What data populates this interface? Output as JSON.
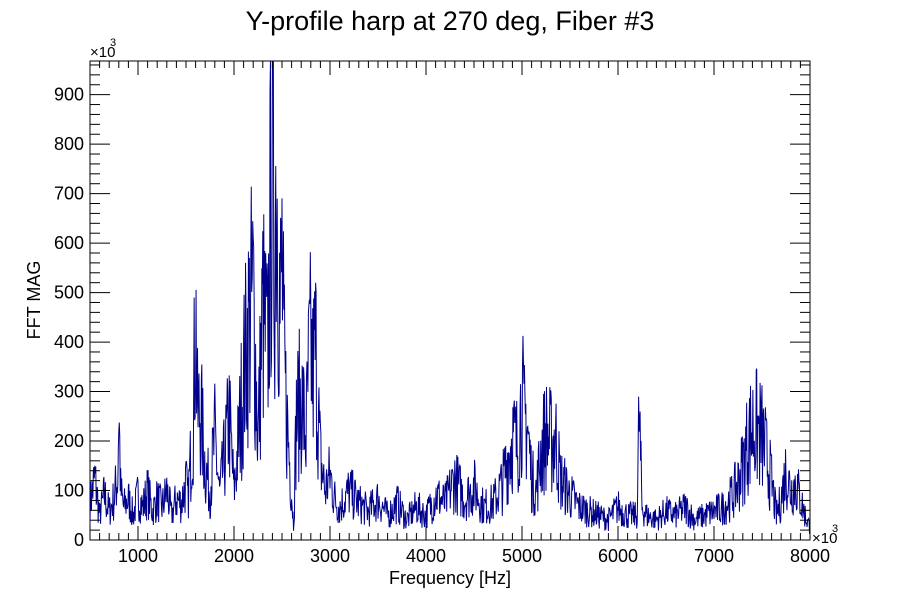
{
  "chart_data": {
    "type": "line",
    "title": "Y-profile harp at 270 deg, Fiber #3",
    "xlabel": "Frequency [Hz]",
    "ylabel": "FFT MAG",
    "x_multiplier_label": "×10",
    "x_multiplier_exponent": "3",
    "y_multiplier_label": "×10",
    "y_multiplier_exponent": "3",
    "xlim": [
      500,
      8000
    ],
    "ylim": [
      0,
      968
    ],
    "x_major_ticks": [
      1000,
      2000,
      3000,
      4000,
      5000,
      6000,
      7000,
      8000
    ],
    "y_major_ticks": [
      0,
      100,
      200,
      300,
      400,
      500,
      600,
      700,
      800,
      900
    ],
    "line_color": "#00008b",
    "grid": false,
    "series": [
      {
        "x": [
          500,
          550,
          600,
          650,
          700,
          750,
          790,
          800,
          820,
          850,
          900,
          950,
          1000,
          1050,
          1100,
          1150,
          1200,
          1250,
          1300,
          1350,
          1400,
          1450,
          1500,
          1520,
          1550,
          1580,
          1600,
          1620,
          1650,
          1700,
          1750,
          1800,
          1850,
          1900,
          1950,
          2000,
          2050,
          2100,
          2150,
          2200,
          2250,
          2300,
          2350,
          2380,
          2400,
          2420,
          2440,
          2460,
          2480,
          2500,
          2520,
          2550,
          2600,
          2620,
          2650,
          2700,
          2750,
          2780,
          2800,
          2820,
          2850,
          2880,
          2900,
          2950,
          3000,
          3050,
          3100,
          3200,
          3300,
          3400,
          3500,
          3600,
          3700,
          3800,
          3900,
          4000,
          4100,
          4200,
          4300,
          4400,
          4500,
          4600,
          4700,
          4800,
          4850,
          4900,
          4950,
          4980,
          5000,
          5020,
          5050,
          5100,
          5150,
          5200,
          5250,
          5300,
          5350,
          5400,
          5450,
          5500,
          5600,
          5700,
          5800,
          5900,
          6000,
          6100,
          6200,
          6220,
          6250,
          6300,
          6400,
          6500,
          6600,
          6700,
          6800,
          6900,
          7000,
          7100,
          7200,
          7250,
          7300,
          7350,
          7400,
          7450,
          7500,
          7550,
          7600,
          7650,
          7700,
          7750,
          7800,
          7850,
          7900,
          7950,
          8000
        ],
        "y": [
          90,
          150,
          60,
          110,
          70,
          100,
          160,
          330,
          120,
          80,
          100,
          60,
          110,
          80,
          120,
          70,
          100,
          80,
          120,
          60,
          100,
          90,
          140,
          100,
          200,
          330,
          580,
          300,
          320,
          180,
          120,
          250,
          110,
          200,
          300,
          120,
          250,
          400,
          520,
          600,
          250,
          560,
          450,
          780,
          920,
          700,
          910,
          800,
          550,
          680,
          430,
          300,
          120,
          40,
          300,
          350,
          250,
          420,
          470,
          400,
          470,
          300,
          200,
          120,
          160,
          100,
          80,
          120,
          90,
          70,
          100,
          60,
          90,
          50,
          80,
          60,
          110,
          90,
          150,
          100,
          130,
          80,
          90,
          140,
          200,
          250,
          230,
          300,
          370,
          280,
          300,
          150,
          120,
          220,
          260,
          240,
          250,
          150,
          130,
          110,
          80,
          70,
          60,
          50,
          80,
          60,
          60,
          310,
          80,
          60,
          50,
          70,
          60,
          80,
          50,
          60,
          70,
          80,
          110,
          140,
          180,
          240,
          275,
          270,
          250,
          200,
          140,
          60,
          100,
          170,
          120,
          140,
          100,
          60,
          30
        ]
      }
    ]
  }
}
